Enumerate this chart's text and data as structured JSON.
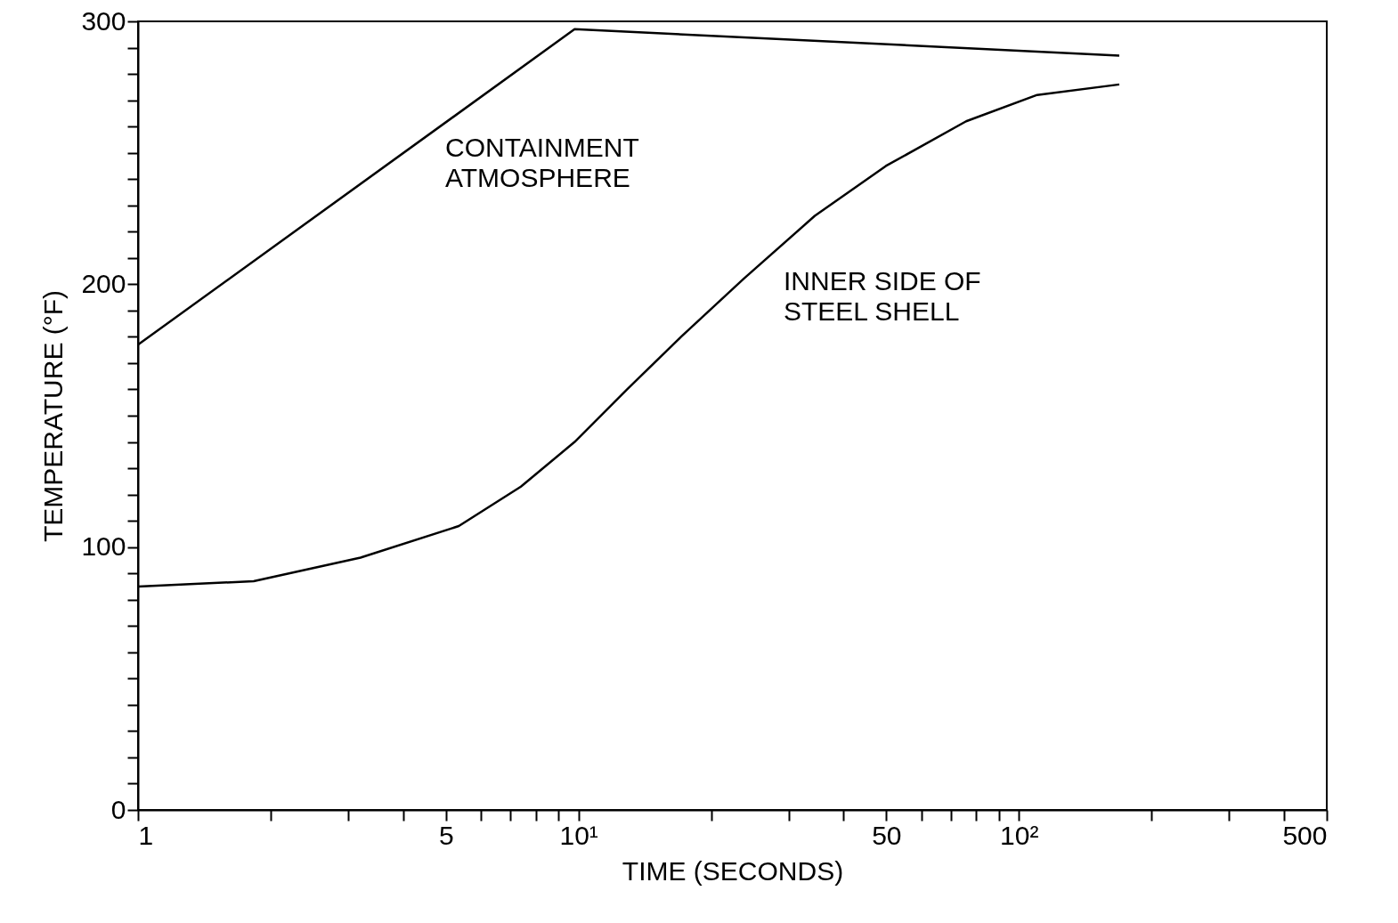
{
  "chart_data": {
    "type": "line",
    "xlabel": "TIME (SECONDS)",
    "ylabel": "TEMPERATURE (°F)",
    "log": "x",
    "grid": false,
    "marker": "none",
    "line_style": "solid",
    "xlim": [
      1,
      500
    ],
    "ylim": [
      0,
      300
    ],
    "xticks": [
      1,
      {
        "value": 2,
        "label": null
      },
      {
        "value": 3,
        "label": null
      },
      {
        "value": 4,
        "label": null
      },
      5,
      {
        "value": 6,
        "label": null
      },
      {
        "value": 7,
        "label": null
      },
      {
        "value": 8,
        "label": null
      },
      {
        "value": 9,
        "label": null
      },
      {
        "value": 10,
        "label": "10¹"
      },
      {
        "value": 20,
        "label": null
      },
      {
        "value": 30,
        "label": null
      },
      {
        "value": 40,
        "label": null
      },
      50,
      {
        "value": 60,
        "label": null
      },
      {
        "value": 70,
        "label": null
      },
      {
        "value": 80,
        "label": null
      },
      {
        "value": 90,
        "label": null
      },
      {
        "value": 100,
        "label": "10²"
      },
      {
        "value": 200,
        "label": null
      },
      {
        "value": 300,
        "label": null
      },
      {
        "value": 400,
        "label": null
      },
      500
    ],
    "yticks": [
      0,
      {
        "value": 10,
        "label": null
      },
      {
        "value": 20,
        "label": null
      },
      {
        "value": 30,
        "label": null
      },
      {
        "value": 40,
        "label": null
      },
      {
        "value": 50,
        "label": null
      },
      {
        "value": 60,
        "label": null
      },
      {
        "value": 70,
        "label": null
      },
      {
        "value": 80,
        "label": null
      },
      {
        "value": 90,
        "label": null
      },
      100,
      {
        "value": 110,
        "label": null
      },
      {
        "value": 120,
        "label": null
      },
      {
        "value": 130,
        "label": null
      },
      {
        "value": 140,
        "label": null
      },
      {
        "value": 150,
        "label": null
      },
      {
        "value": 160,
        "label": null
      },
      {
        "value": 170,
        "label": null
      },
      {
        "value": 180,
        "label": null
      },
      {
        "value": 190,
        "label": null
      },
      200,
      {
        "value": 210,
        "label": null
      },
      {
        "value": 220,
        "label": null
      },
      {
        "value": 230,
        "label": null
      },
      {
        "value": 240,
        "label": null
      },
      {
        "value": 250,
        "label": null
      },
      {
        "value": 260,
        "label": null
      },
      {
        "value": 270,
        "label": null
      },
      {
        "value": 280,
        "label": null
      },
      {
        "value": 290,
        "label": null
      },
      300
    ],
    "series": [
      {
        "name": "CONTAINMENT\nATMOSPHERE",
        "color": "#000000",
        "x": [
          1,
          9.8,
          169
        ],
        "values": [
          177,
          297,
          287
        ]
      },
      {
        "name": "INNER SIDE OF\nSTEEL SHELL",
        "color": "#000000",
        "x": [
          1,
          1.83,
          3.2,
          5.35,
          7.4,
          9.8,
          12.9,
          17.1,
          23.7,
          34.4,
          49.9,
          75.9,
          110,
          169
        ],
        "values": [
          85,
          87,
          96,
          108,
          123,
          140,
          160,
          180,
          202,
          226,
          245,
          262,
          272,
          276
        ]
      }
    ]
  }
}
